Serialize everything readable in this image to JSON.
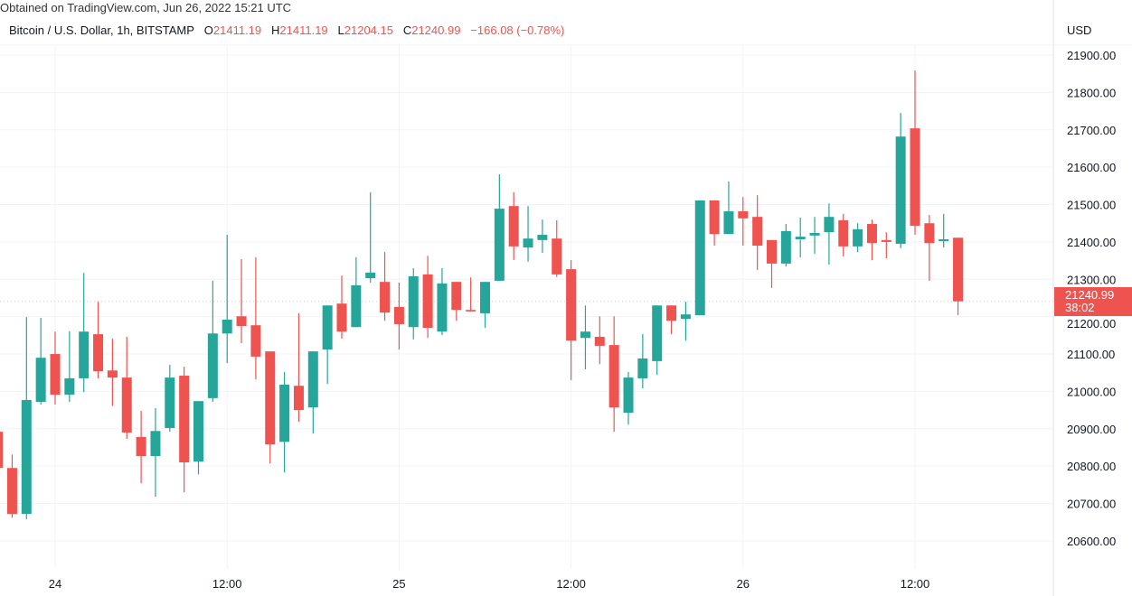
{
  "watermark": "Obtained on TradingView.com, Jun 26, 2022 15:21 UTC",
  "legend": {
    "symbol": "Bitcoin / U.S. Dollar, 1h, BITSTAMP",
    "o_label": "O",
    "o": "21411.19",
    "h_label": "H",
    "h": "21411.19",
    "l_label": "L",
    "l": "21204.15",
    "c_label": "C",
    "c": "21240.99",
    "change": "−166.08 (−0.78%)"
  },
  "currency": "USD",
  "last_price": {
    "price": "21240.99",
    "countdown": "38:02"
  },
  "colors": {
    "up": "#26a69a",
    "down": "#ef5350",
    "grid": "#f0f3fa",
    "text": "#131722"
  },
  "chart_data": {
    "type": "candlestick",
    "title": "Bitcoin / U.S. Dollar, 1h, BITSTAMP",
    "ylim": [
      20560,
      21960
    ],
    "yticks": [
      "20600.00",
      "20700.00",
      "20800.00",
      "20900.00",
      "21000.00",
      "21100.00",
      "21200.00",
      "21300.00",
      "21400.00",
      "21500.00",
      "21600.00",
      "21700.00",
      "21800.00",
      "21900.00"
    ],
    "xticks": [
      {
        "label": "24",
        "t": "06-24 00:00"
      },
      {
        "label": "12:00",
        "t": "06-24 12:00"
      },
      {
        "label": "25",
        "t": "06-25 00:00"
      },
      {
        "label": "12:00",
        "t": "06-25 12:00"
      },
      {
        "label": "26",
        "t": "06-26 00:00"
      },
      {
        "label": "12:00",
        "t": "06-26 12:00"
      }
    ],
    "grid": true,
    "columns": [
      "time",
      "open",
      "high",
      "low",
      "close"
    ],
    "candles": [
      [
        "06-23 20:00",
        20892,
        20892,
        20780,
        20795
      ],
      [
        "06-23 21:00",
        20795,
        20831,
        20662,
        20672
      ],
      [
        "06-23 22:00",
        20672,
        21199,
        20658,
        20977
      ],
      [
        "06-23 23:00",
        20972,
        21197,
        20965,
        21090
      ],
      [
        "06-24 00:00",
        21100,
        21160,
        20965,
        20991
      ],
      [
        "06-24 01:00",
        20991,
        21161,
        20972,
        21035
      ],
      [
        "06-24 02:00",
        21035,
        21317,
        20998,
        21160
      ],
      [
        "06-24 03:00",
        21153,
        21240,
        21035,
        21054
      ],
      [
        "06-24 04:00",
        21056,
        21141,
        20961,
        21037
      ],
      [
        "06-24 05:00",
        21037,
        21146,
        20873,
        20890
      ],
      [
        "06-24 06:00",
        20878,
        20948,
        20754,
        20827
      ],
      [
        "06-24 07:00",
        20827,
        20955,
        20718,
        20894
      ],
      [
        "06-24 08:00",
        20902,
        21071,
        20892,
        21037
      ],
      [
        "06-24 09:00",
        21042,
        21066,
        20730,
        20810
      ],
      [
        "06-24 10:00",
        20812,
        20974,
        20778,
        20974
      ],
      [
        "06-24 11:00",
        20982,
        21296,
        20972,
        21155
      ],
      [
        "06-24 12:00",
        21155,
        21419,
        21076,
        21192
      ],
      [
        "06-24 13:00",
        21201,
        21354,
        21129,
        21175
      ],
      [
        "06-24 14:00",
        21177,
        21359,
        21032,
        21093
      ],
      [
        "06-24 15:00",
        21107,
        21107,
        20807,
        20858
      ],
      [
        "06-24 16:00",
        20865,
        21052,
        20783,
        21018
      ],
      [
        "06-24 17:00",
        21015,
        21209,
        20919,
        20950
      ],
      [
        "06-24 18:00",
        20957,
        21107,
        20887,
        21107
      ],
      [
        "06-24 19:00",
        21112,
        21230,
        21020,
        21230
      ],
      [
        "06-24 20:00",
        21235,
        21310,
        21141,
        21160
      ],
      [
        "06-24 21:00",
        21172,
        21359,
        21172,
        21284
      ],
      [
        "06-24 22:00",
        21303,
        21533,
        21291,
        21318
      ],
      [
        "06-24 23:00",
        21293,
        21373,
        21189,
        21211
      ],
      [
        "06-25 00:00",
        21226,
        21291,
        21112,
        21180
      ],
      [
        "06-25 01:00",
        21172,
        21330,
        21139,
        21308
      ],
      [
        "06-25 02:00",
        21313,
        21363,
        21143,
        21170
      ],
      [
        "06-25 03:00",
        21160,
        21330,
        21151,
        21289
      ],
      [
        "06-25 04:00",
        21293,
        21293,
        21189,
        21218
      ],
      [
        "06-25 05:00",
        21218,
        21305,
        21214,
        21214
      ],
      [
        "06-25 06:00",
        21209,
        21293,
        21170,
        21293
      ],
      [
        "06-25 07:00",
        21296,
        21581,
        21296,
        21489
      ],
      [
        "06-25 08:00",
        21496,
        21533,
        21352,
        21388
      ],
      [
        "06-25 09:00",
        21385,
        21496,
        21347,
        21409
      ],
      [
        "06-25 10:00",
        21405,
        21460,
        21371,
        21419
      ],
      [
        "06-25 11:00",
        21409,
        21458,
        21306,
        21313
      ],
      [
        "06-25 12:00",
        21327,
        21351,
        21030,
        21136
      ],
      [
        "06-25 13:00",
        21143,
        21230,
        21059,
        21160
      ],
      [
        "06-25 14:00",
        21146,
        21201,
        21073,
        21122
      ],
      [
        "06-25 15:00",
        21124,
        21201,
        20892,
        20957
      ],
      [
        "06-25 16:00",
        20943,
        21052,
        20911,
        21037
      ],
      [
        "06-25 17:00",
        21035,
        21153,
        21008,
        21088
      ],
      [
        "06-25 18:00",
        21081,
        21230,
        21044,
        21230
      ],
      [
        "06-25 19:00",
        21230,
        21230,
        21153,
        21189
      ],
      [
        "06-25 20:00",
        21194,
        21240,
        21136,
        21206
      ],
      [
        "06-25 21:00",
        21204,
        21511,
        21204,
        21511
      ],
      [
        "06-25 22:00",
        21511,
        21511,
        21390,
        21421
      ],
      [
        "06-25 23:00",
        21421,
        21562,
        21421,
        21482
      ],
      [
        "06-26 00:00",
        21482,
        21520,
        21390,
        21463
      ],
      [
        "06-26 01:00",
        21467,
        21525,
        21325,
        21390
      ],
      [
        "06-26 02:00",
        21405,
        21405,
        21277,
        21342
      ],
      [
        "06-26 03:00",
        21342,
        21448,
        21334,
        21429
      ],
      [
        "06-26 04:00",
        21407,
        21465,
        21359,
        21414
      ],
      [
        "06-26 05:00",
        21417,
        21467,
        21368,
        21424
      ],
      [
        "06-26 06:00",
        21426,
        21503,
        21339,
        21467
      ],
      [
        "06-26 07:00",
        21458,
        21475,
        21361,
        21388
      ],
      [
        "06-26 08:00",
        21388,
        21450,
        21373,
        21434
      ],
      [
        "06-26 09:00",
        21448,
        21460,
        21351,
        21397
      ],
      [
        "06-26 10:00",
        21405,
        21426,
        21356,
        21400
      ],
      [
        "06-26 11:00",
        21395,
        21745,
        21383,
        21682
      ],
      [
        "06-26 12:00",
        21704,
        21859,
        21419,
        21443
      ],
      [
        "06-26 13:00",
        21450,
        21472,
        21296,
        21397
      ],
      [
        "06-26 14:00",
        21402,
        21475,
        21385,
        21407
      ],
      [
        "06-26 15:00",
        21411.19,
        21411.19,
        21204.15,
        21240.99
      ]
    ]
  }
}
